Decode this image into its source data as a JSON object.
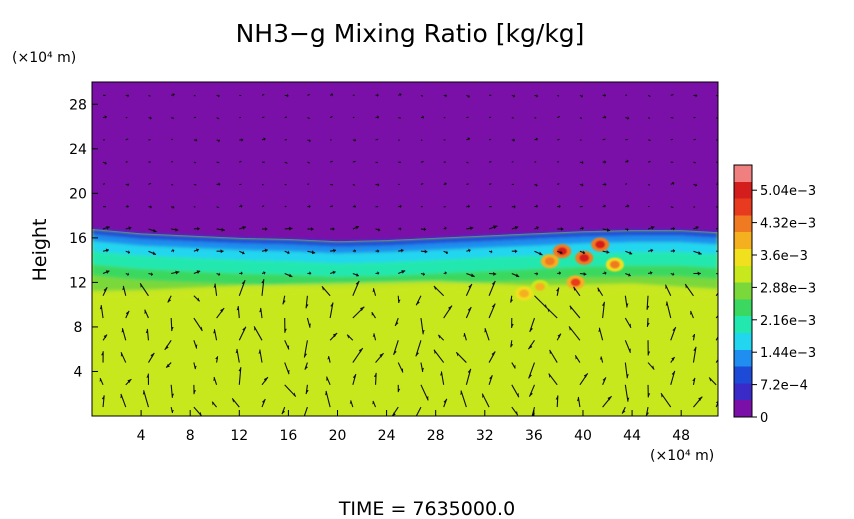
{
  "chart_data": {
    "type": "heatmap",
    "title": "NH3−g Mixing Ratio [kg/kg]",
    "ylabel": "Height",
    "y_unit": "(×10⁴ m)",
    "x_unit": "(×10⁴ m)",
    "footer": "TIME  =  7635000.0",
    "xlim": [
      0,
      51
    ],
    "ylim": [
      0,
      30
    ],
    "x_ticks": [
      4,
      8,
      12,
      16,
      20,
      24,
      28,
      32,
      36,
      40,
      44,
      48
    ],
    "y_ticks": [
      4,
      8,
      12,
      16,
      20,
      24,
      28
    ],
    "colorbar": {
      "range": [
        0,
        0.0056
      ],
      "tick_values": [
        0,
        0.00072,
        0.00144,
        0.00216,
        0.00288,
        0.0036,
        0.00432,
        0.00504
      ],
      "tick_labels": [
        "0",
        "7.2e−4",
        "1.44e−3",
        "2.16e−3",
        "2.88e−3",
        "3.6e−3",
        "4.32e−3",
        "5.04e−3"
      ],
      "colors": [
        "#7a10a8",
        "#3a2ac8",
        "#1e4ad8",
        "#1f8ef0",
        "#22d6f0",
        "#22e8b0",
        "#3ad860",
        "#7ad83a",
        "#c8e81e",
        "#f0e01e",
        "#f5b020",
        "#f07a22",
        "#e83a1e",
        "#d41e1e",
        "#f08080"
      ]
    },
    "background_value": 0.0033,
    "upper_value": 0,
    "layer_profile_x": [
      0,
      4,
      8,
      12,
      16,
      20,
      24,
      28,
      32,
      36,
      40,
      44,
      48,
      51
    ],
    "layer_top_y": [
      16.8,
      16.4,
      16.2,
      16.0,
      15.9,
      15.7,
      15.8,
      16.0,
      16.2,
      16.4,
      16.6,
      16.7,
      16.7,
      16.5
    ],
    "layer_bottom_y": [
      11.2,
      11.3,
      11.5,
      11.7,
      11.8,
      11.9,
      12.0,
      12.1,
      11.9,
      11.7,
      11.8,
      11.9,
      11.6,
      11.4
    ],
    "hotspots": [
      {
        "x": 38.3,
        "y": 14.8,
        "value": 0.0052
      },
      {
        "x": 40.1,
        "y": 14.2,
        "value": 0.005
      },
      {
        "x": 41.4,
        "y": 15.4,
        "value": 0.0049
      },
      {
        "x": 37.3,
        "y": 13.9,
        "value": 0.0044
      },
      {
        "x": 39.4,
        "y": 12.0,
        "value": 0.0046
      },
      {
        "x": 42.6,
        "y": 13.6,
        "value": 0.0042
      },
      {
        "x": 35.2,
        "y": 11.0,
        "value": 0.004
      },
      {
        "x": 36.5,
        "y": 11.6,
        "value": 0.0039
      }
    ],
    "wind_vectors": "quiver overlay, columns every ~1.8 (×10⁴ m), rows every ~2 (×10⁴ m)"
  }
}
